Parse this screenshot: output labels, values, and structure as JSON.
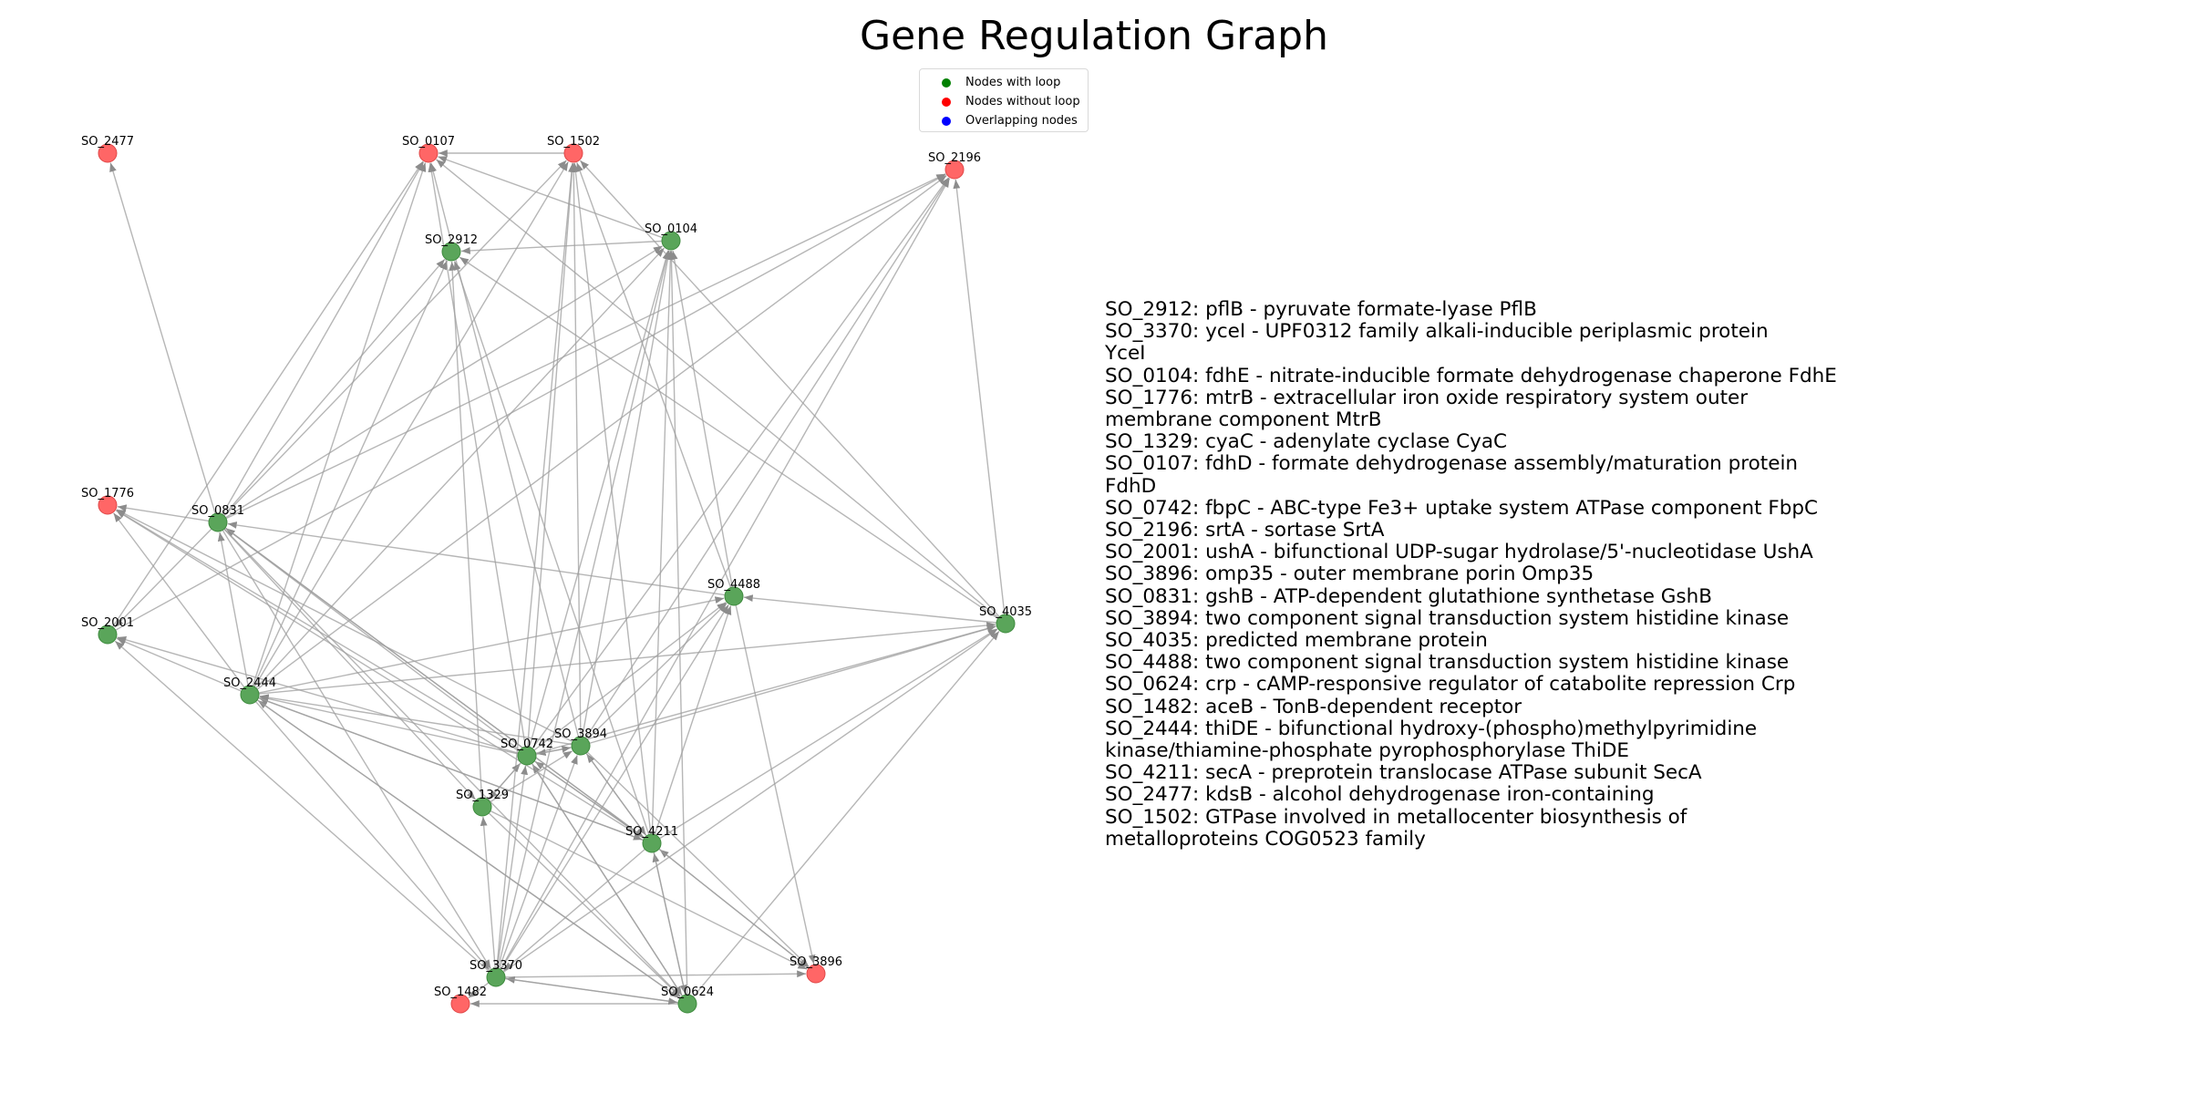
{
  "title": "Gene Regulation Graph",
  "legend": {
    "items": [
      {
        "label": "Nodes with loop",
        "color": "#008000"
      },
      {
        "label": "Nodes without loop",
        "color": "#ff0000"
      },
      {
        "label": "Overlapping nodes",
        "color": "#0000ff"
      }
    ]
  },
  "colors": {
    "node_loop": "#5aa55a",
    "node_noloop": "#ff6666",
    "edge": "#9e9e9e"
  },
  "graph": {
    "nodes": [
      {
        "id": "SO_2477",
        "loop": false
      },
      {
        "id": "SO_0107",
        "loop": false
      },
      {
        "id": "SO_1502",
        "loop": false
      },
      {
        "id": "SO_2196",
        "loop": false
      },
      {
        "id": "SO_2912",
        "loop": true
      },
      {
        "id": "SO_0104",
        "loop": true
      },
      {
        "id": "SO_1776",
        "loop": false
      },
      {
        "id": "SO_0831",
        "loop": true
      },
      {
        "id": "SO_4488",
        "loop": true
      },
      {
        "id": "SO_4035",
        "loop": true
      },
      {
        "id": "SO_2001",
        "loop": true
      },
      {
        "id": "SO_2444",
        "loop": true
      },
      {
        "id": "SO_0742",
        "loop": true
      },
      {
        "id": "SO_3894",
        "loop": true
      },
      {
        "id": "SO_1329",
        "loop": true
      },
      {
        "id": "SO_4211",
        "loop": true
      },
      {
        "id": "SO_3896",
        "loop": false
      },
      {
        "id": "SO_3370",
        "loop": true
      },
      {
        "id": "SO_1482",
        "loop": false
      },
      {
        "id": "SO_0624",
        "loop": true
      }
    ],
    "edges": [
      [
        "SO_0831",
        "SO_2477"
      ],
      [
        "SO_2444",
        "SO_0107"
      ],
      [
        "SO_0831",
        "SO_0107"
      ],
      [
        "SO_0104",
        "SO_0107"
      ],
      [
        "SO_1502",
        "SO_0107"
      ],
      [
        "SO_0742",
        "SO_0107"
      ],
      [
        "SO_4035",
        "SO_0107"
      ],
      [
        "SO_3894",
        "SO_0107"
      ],
      [
        "SO_2001",
        "SO_0107"
      ],
      [
        "SO_0831",
        "SO_1502"
      ],
      [
        "SO_2444",
        "SO_1502"
      ],
      [
        "SO_0742",
        "SO_1502"
      ],
      [
        "SO_3894",
        "SO_1502"
      ],
      [
        "SO_4488",
        "SO_1502"
      ],
      [
        "SO_4211",
        "SO_1502"
      ],
      [
        "SO_4035",
        "SO_1502"
      ],
      [
        "SO_3370",
        "SO_1502"
      ],
      [
        "SO_0831",
        "SO_2196"
      ],
      [
        "SO_2444",
        "SO_2196"
      ],
      [
        "SO_0742",
        "SO_2196"
      ],
      [
        "SO_3894",
        "SO_2196"
      ],
      [
        "SO_4035",
        "SO_2196"
      ],
      [
        "SO_3370",
        "SO_2196"
      ],
      [
        "SO_2001",
        "SO_2196"
      ],
      [
        "SO_0104",
        "SO_2912"
      ],
      [
        "SO_0831",
        "SO_2912"
      ],
      [
        "SO_2444",
        "SO_2912"
      ],
      [
        "SO_1329",
        "SO_2912"
      ],
      [
        "SO_4211",
        "SO_2912"
      ],
      [
        "SO_4035",
        "SO_2912"
      ],
      [
        "SO_0831",
        "SO_0104"
      ],
      [
        "SO_2444",
        "SO_0104"
      ],
      [
        "SO_0742",
        "SO_0104"
      ],
      [
        "SO_3894",
        "SO_0104"
      ],
      [
        "SO_4488",
        "SO_0104"
      ],
      [
        "SO_4211",
        "SO_0104"
      ],
      [
        "SO_3370",
        "SO_0104"
      ],
      [
        "SO_0624",
        "SO_0104"
      ],
      [
        "SO_0831",
        "SO_1776"
      ],
      [
        "SO_2444",
        "SO_1776"
      ],
      [
        "SO_0742",
        "SO_1776"
      ],
      [
        "SO_3894",
        "SO_1776"
      ],
      [
        "SO_4211",
        "SO_1776"
      ],
      [
        "SO_2444",
        "SO_0831"
      ],
      [
        "SO_0742",
        "SO_0831"
      ],
      [
        "SO_4211",
        "SO_0831"
      ],
      [
        "SO_4488",
        "SO_0831"
      ],
      [
        "SO_0742",
        "SO_4488"
      ],
      [
        "SO_3894",
        "SO_4488"
      ],
      [
        "SO_4211",
        "SO_4488"
      ],
      [
        "SO_3370",
        "SO_4488"
      ],
      [
        "SO_2444",
        "SO_4488"
      ],
      [
        "SO_4035",
        "SO_4488"
      ],
      [
        "SO_0742",
        "SO_4035"
      ],
      [
        "SO_3894",
        "SO_4035"
      ],
      [
        "SO_4211",
        "SO_4035"
      ],
      [
        "SO_3370",
        "SO_4035"
      ],
      [
        "SO_2444",
        "SO_4035"
      ],
      [
        "SO_0624",
        "SO_4035"
      ],
      [
        "SO_0831",
        "SO_2001"
      ],
      [
        "SO_2444",
        "SO_2001"
      ],
      [
        "SO_0742",
        "SO_2001"
      ],
      [
        "SO_3370",
        "SO_2001"
      ],
      [
        "SO_0742",
        "SO_2444"
      ],
      [
        "SO_3894",
        "SO_2444"
      ],
      [
        "SO_4211",
        "SO_2444"
      ],
      [
        "SO_0624",
        "SO_2444"
      ],
      [
        "SO_3894",
        "SO_0742"
      ],
      [
        "SO_1329",
        "SO_0742"
      ],
      [
        "SO_4211",
        "SO_0742"
      ],
      [
        "SO_3370",
        "SO_0742"
      ],
      [
        "SO_0624",
        "SO_0742"
      ],
      [
        "SO_0742",
        "SO_3894"
      ],
      [
        "SO_4211",
        "SO_3894"
      ],
      [
        "SO_3370",
        "SO_3894"
      ],
      [
        "SO_1329",
        "SO_3894"
      ],
      [
        "SO_0742",
        "SO_1329"
      ],
      [
        "SO_3370",
        "SO_1329"
      ],
      [
        "SO_0831",
        "SO_1329"
      ],
      [
        "SO_0742",
        "SO_4211"
      ],
      [
        "SO_3894",
        "SO_4211"
      ],
      [
        "SO_3896",
        "SO_4211"
      ],
      [
        "SO_0624",
        "SO_4211"
      ],
      [
        "SO_0831",
        "SO_4211"
      ],
      [
        "SO_2444",
        "SO_4211"
      ],
      [
        "SO_4211",
        "SO_3896"
      ],
      [
        "SO_4488",
        "SO_3896"
      ],
      [
        "SO_3370",
        "SO_3896"
      ],
      [
        "SO_1329",
        "SO_3896"
      ],
      [
        "SO_3894",
        "SO_3896"
      ],
      [
        "SO_0831",
        "SO_3370"
      ],
      [
        "SO_2444",
        "SO_3370"
      ],
      [
        "SO_0624",
        "SO_3370"
      ],
      [
        "SO_4211",
        "SO_3370"
      ],
      [
        "SO_0624",
        "SO_1482"
      ],
      [
        "SO_3370",
        "SO_1482"
      ],
      [
        "SO_3370",
        "SO_0624"
      ],
      [
        "SO_0742",
        "SO_0624"
      ],
      [
        "SO_1329",
        "SO_0624"
      ],
      [
        "SO_4211",
        "SO_0624"
      ],
      [
        "SO_2444",
        "SO_0624"
      ],
      [
        "SO_0831",
        "SO_0624"
      ]
    ]
  },
  "annotations": [
    "SO_2912: pflB - pyruvate formate-lyase PflB",
    "SO_3370: yceI - UPF0312 family alkali-inducible periplasmic protein",
    "YceI",
    "SO_0104: fdhE - nitrate-inducible formate dehydrogenase chaperone FdhE",
    "SO_1776: mtrB - extracellular iron oxide respiratory system outer",
    "membrane component MtrB",
    "SO_1329: cyaC - adenylate cyclase CyaC",
    "SO_0107: fdhD - formate dehydrogenase assembly/maturation protein FdhD",
    "SO_0742: fbpC - ABC-type Fe3+ uptake system ATPase component FbpC",
    "SO_2196: srtA - sortase SrtA",
    "SO_2001: ushA - bifunctional UDP-sugar hydrolase/5'-nucleotidase UshA",
    "SO_3896: omp35 - outer membrane porin Omp35",
    "SO_0831: gshB - ATP-dependent glutathione synthetase GshB",
    "SO_3894: two component signal transduction system histidine kinase",
    "SO_4035: predicted membrane protein",
    "SO_4488: two component signal transduction system histidine kinase",
    "SO_0624: crp - cAMP-responsive regulator of catabolite repression Crp",
    "SO_1482: aceB - TonB-dependent receptor",
    "SO_2444: thiDE - bifunctional hydroxy-(phospho)methylpyrimidine",
    "kinase/thiamine-phosphate pyrophosphorylase ThiDE",
    "SO_4211: secA - preprotein translocase ATPase subunit SecA",
    "SO_2477: kdsB - alcohol dehydrogenase iron-containing",
    "SO_1502: GTPase involved in metallocenter biosynthesis of",
    "metalloproteins COG0523 family"
  ]
}
